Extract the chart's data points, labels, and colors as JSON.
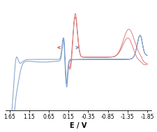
{
  "xlabel": "E / V",
  "xlabel_fontsize": 7,
  "tick_fontsize": 5.5,
  "xlim": [
    1.75,
    -1.95
  ],
  "ylim": [
    -0.95,
    1.05
  ],
  "xticks": [
    1.65,
    1.15,
    0.65,
    0.15,
    -0.35,
    -0.85,
    -1.35,
    -1.85
  ],
  "xtick_labels": [
    "1.65",
    "1.15",
    "0.65",
    "0.15",
    "-0.35",
    "-0.85",
    "-1.35",
    "-1.85"
  ],
  "blue_color": "#7799cc",
  "red_color": "#dd7777",
  "background_color": "#ffffff"
}
